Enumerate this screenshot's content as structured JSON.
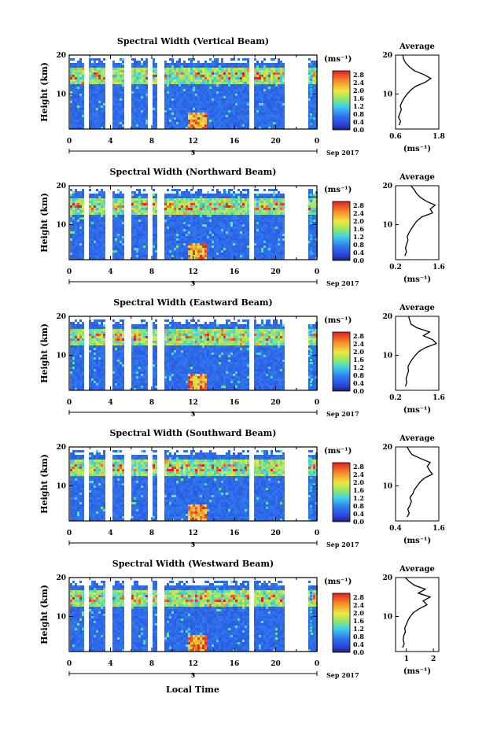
{
  "figure": {
    "date_label": "Sep 2017",
    "xlabel": "Local Time",
    "average_title": "Average",
    "unit": "(ms⁻¹)"
  },
  "chart_data": [
    {
      "type": "heatmap",
      "title": "Spectral Width (Vertical Beam)",
      "ylabel": "Height (km)",
      "x_ticks": [
        "0",
        "4",
        "8",
        "12",
        "16",
        "20",
        "0"
      ],
      "y_ticks": [
        "20",
        "10"
      ],
      "ylim": [
        1,
        20
      ],
      "day_marker": "5",
      "colorbar": {
        "ticks": [
          "2.8",
          "2.4",
          "2.0",
          "1.6",
          "1.2",
          "0.8",
          "0.4",
          "0.0"
        ],
        "range": [
          0.0,
          3.0
        ]
      },
      "average": {
        "xlim": [
          0.6,
          1.8
        ],
        "x_ticks": [
          "0.6",
          "1.8"
        ],
        "y_ticks": [
          "20",
          "10"
        ],
        "height": [
          2,
          3,
          4,
          5,
          6,
          7,
          8,
          9,
          10,
          11,
          12,
          13,
          14,
          15,
          16,
          17,
          18,
          19,
          20
        ],
        "value": [
          0.7,
          0.74,
          0.68,
          0.72,
          0.76,
          0.73,
          0.78,
          0.84,
          0.92,
          1.02,
          1.16,
          1.42,
          1.58,
          1.38,
          1.12,
          0.98,
          0.88,
          0.82,
          0.8
        ]
      }
    },
    {
      "type": "heatmap",
      "title": "Spectral Width (Northward Beam)",
      "ylabel": "Height (km)",
      "x_ticks": [
        "0",
        "4",
        "8",
        "12",
        "16",
        "20",
        "0"
      ],
      "y_ticks": [
        "20",
        "10"
      ],
      "ylim": [
        1,
        20
      ],
      "day_marker": "5",
      "colorbar": {
        "ticks": [
          "2.8",
          "2.4",
          "2.0",
          "1.6",
          "1.2",
          "0.8",
          "0.4",
          "0.0"
        ],
        "range": [
          0.0,
          3.0
        ]
      },
      "average": {
        "xlim": [
          0.2,
          1.6
        ],
        "x_ticks": [
          "0.2",
          "1.6"
        ],
        "y_ticks": [
          "20",
          "10"
        ],
        "height": [
          2,
          3,
          4,
          5,
          6,
          7,
          8,
          9,
          10,
          11,
          12,
          13,
          14,
          15,
          16,
          17,
          18,
          19,
          20
        ],
        "value": [
          0.5,
          0.55,
          0.52,
          0.56,
          0.6,
          0.58,
          0.64,
          0.72,
          0.8,
          0.9,
          1.05,
          1.4,
          1.32,
          1.48,
          1.2,
          1.0,
          0.88,
          0.8,
          0.7
        ]
      }
    },
    {
      "type": "heatmap",
      "title": "Spectral Width (Eastward Beam)",
      "ylabel": "Height (km)",
      "x_ticks": [
        "0",
        "4",
        "8",
        "12",
        "16",
        "20",
        "0"
      ],
      "y_ticks": [
        "20",
        "10"
      ],
      "ylim": [
        1,
        20
      ],
      "day_marker": "5",
      "colorbar": {
        "ticks": [
          "2.8",
          "2.4",
          "2.0",
          "1.6",
          "1.2",
          "0.8",
          "0.4",
          "0.0"
        ],
        "range": [
          0.0,
          3.0
        ]
      },
      "average": {
        "xlim": [
          0.2,
          1.6
        ],
        "x_ticks": [
          "0.2",
          "1.6"
        ],
        "y_ticks": [
          "20",
          "10"
        ],
        "height": [
          2,
          3,
          4,
          5,
          6,
          7,
          8,
          9,
          10,
          11,
          12,
          13,
          14,
          15,
          16,
          17,
          18,
          19,
          20
        ],
        "value": [
          0.52,
          0.56,
          0.54,
          0.58,
          0.62,
          0.6,
          0.66,
          0.74,
          0.84,
          0.96,
          1.18,
          1.52,
          1.4,
          1.1,
          1.3,
          0.9,
          0.7,
          0.66,
          0.62
        ]
      }
    },
    {
      "type": "heatmap",
      "title": "Spectral Width (Southward Beam)",
      "ylabel": "Height (km)",
      "x_ticks": [
        "0",
        "4",
        "8",
        "12",
        "16",
        "20",
        "0"
      ],
      "y_ticks": [
        "20",
        "10"
      ],
      "ylim": [
        1,
        20
      ],
      "day_marker": "5",
      "colorbar": {
        "ticks": [
          "2.8",
          "2.4",
          "2.0",
          "1.6",
          "1.2",
          "0.8",
          "0.4",
          "0.0"
        ],
        "range": [
          0.0,
          3.0
        ]
      },
      "average": {
        "xlim": [
          0.4,
          1.6
        ],
        "x_ticks": [
          "0.4",
          "1.6"
        ],
        "y_ticks": [
          "20",
          "10"
        ],
        "height": [
          2,
          3,
          4,
          5,
          6,
          7,
          8,
          9,
          10,
          11,
          12,
          13,
          14,
          15,
          16,
          17,
          18,
          19,
          20
        ],
        "value": [
          0.72,
          0.78,
          0.74,
          0.8,
          0.84,
          0.8,
          0.88,
          0.92,
          1.0,
          1.08,
          1.2,
          1.42,
          1.34,
          1.28,
          1.36,
          1.1,
          0.86,
          0.78,
          0.72
        ]
      }
    },
    {
      "type": "heatmap",
      "title": "Spectral Width (Westward Beam)",
      "ylabel": "Height (km)",
      "x_ticks": [
        "0",
        "4",
        "8",
        "12",
        "16",
        "20",
        "0"
      ],
      "y_ticks": [
        "20",
        "10"
      ],
      "ylim": [
        1,
        20
      ],
      "day_marker": "5",
      "colorbar": {
        "ticks": [
          "2.8",
          "2.4",
          "2.0",
          "1.6",
          "1.2",
          "0.8",
          "0.4",
          "0.0"
        ],
        "range": [
          0.0,
          3.0
        ]
      },
      "average": {
        "xlim": [
          0.6,
          2.2
        ],
        "x_ticks": [
          "1",
          "2"
        ],
        "y_ticks": [
          "20",
          "10"
        ],
        "height": [
          2,
          3,
          4,
          5,
          6,
          7,
          8,
          9,
          10,
          11,
          12,
          13,
          14,
          15,
          16,
          17,
          18,
          19,
          20
        ],
        "value": [
          0.86,
          0.92,
          0.88,
          0.9,
          0.96,
          0.94,
          1.0,
          1.06,
          1.14,
          1.26,
          1.48,
          1.76,
          1.62,
          1.88,
          1.44,
          1.7,
          1.3,
          1.1,
          0.96
        ]
      }
    }
  ]
}
